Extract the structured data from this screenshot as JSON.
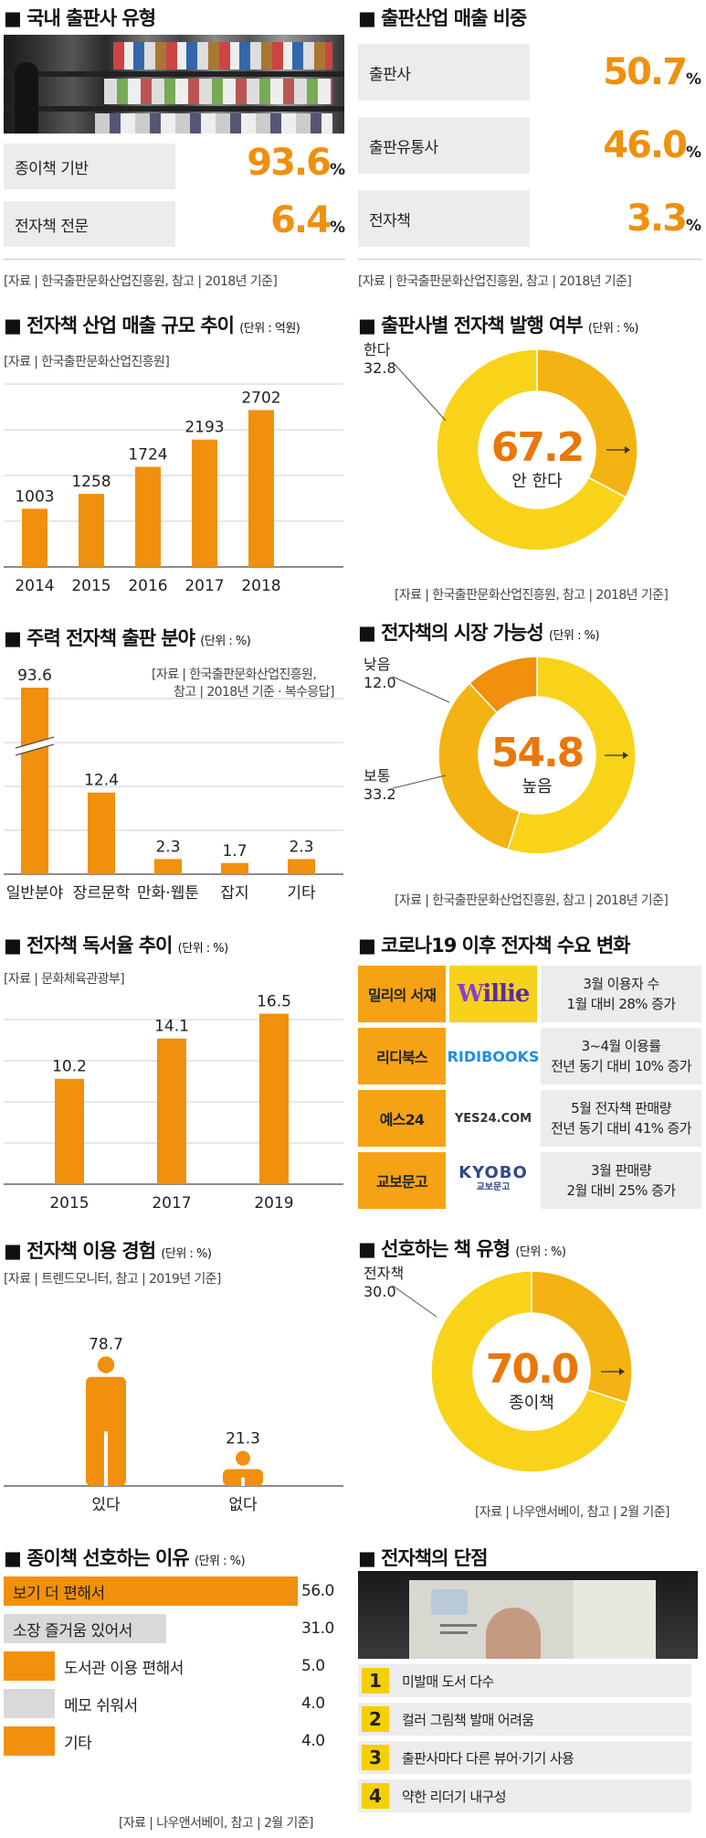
{
  "colors": {
    "orange": "#f0900c",
    "yellow": "#f8d31a",
    "gray": "#d9d9d9"
  },
  "pub_types": {
    "title": "국내 출판사 유형",
    "rows": [
      {
        "label": "종이책 기반",
        "value": "93.6",
        "unit": "%"
      },
      {
        "label": "전자책 전문",
        "value": "6.4",
        "unit": "%"
      }
    ],
    "source": "[자료 | 한국출판문화산업진흥원, 참고 | 2018년 기준]"
  },
  "revenue_share": {
    "title": "출판산업 매출 비중",
    "rows": [
      {
        "label": "출판사",
        "value": "50.7",
        "unit": "%"
      },
      {
        "label": "출판유통사",
        "value": "46.0",
        "unit": "%"
      },
      {
        "label": "전자책",
        "value": "3.3",
        "unit": "%"
      }
    ],
    "source": "[자료 | 한국출판문화산업진흥원, 참고 | 2018년 기준]"
  },
  "ebook_sales": {
    "title": "전자책 산업 매출 규모 추이",
    "unit": "(단위 : 억원)",
    "source": "[자료 | 한국출판문화산업진흥원]"
  },
  "pub_ebook": {
    "title": "출판사별 전자책 발행 여부",
    "unit": "(단위 : %)",
    "center_value": "67.2",
    "center_label": "안 한다",
    "slice_label": "한다",
    "slice_value": "32.8",
    "source": "[자료 | 한국출판문화산업진흥원, 참고 | 2018년 기준]"
  },
  "genre": {
    "title": "주력 전자책 출판 분야",
    "unit": "(단위 : %)",
    "source_l1": "[자료 | 한국출판문화산업진흥원,",
    "source_l2": "참고 | 2018년 기준 · 복수응답]"
  },
  "market": {
    "title": "전자책의 시장 가능성",
    "unit": "(단위 : %)",
    "center_value": "54.8",
    "center_label": "높음",
    "low_label": "낮음",
    "low_value": "12.0",
    "mid_label": "보통",
    "mid_value": "33.2",
    "source": "[자료 | 한국출판문화산업진흥원, 참고 | 2018년 기준]"
  },
  "reading": {
    "title": "전자책 독서율 추이",
    "unit": "(단위 : %)",
    "source": "[자료 | 문화체육관광부]"
  },
  "corona": {
    "title": "코로나19 이후 전자책 수요 변화",
    "rows": [
      {
        "name": "밀리의 서재",
        "logo": "willie",
        "l1": "3월 이용자 수",
        "l2": "1월 대비 28% 증가"
      },
      {
        "name": "리디북스",
        "logo": "RIDIBOOKS",
        "l1": "3~4월 이용률",
        "l2": "전년 동기 대비 10% 증가"
      },
      {
        "name": "예스24",
        "logo": "YES24.COM",
        "l1": "5월 전자책 판매량",
        "l2": "전년 동기 대비 41% 증가"
      },
      {
        "name": "교보문고",
        "logo": "KYOBO",
        "logo_sub": "교보문고",
        "l1": "3월 판매량",
        "l2": "2월 대비 25% 증가"
      }
    ]
  },
  "experience": {
    "title": "전자책 이용 경험",
    "unit": "(단위 : %)",
    "source": "[자료 | 트렌드모니터, 참고 | 2019년 기준]"
  },
  "prefer": {
    "title": "선호하는 책 유형",
    "unit": "(단위 : %)",
    "center_value": "70.0",
    "center_label": "종이책",
    "slice_label": "전자책",
    "slice_value": "30.0",
    "source": "[자료 | 나우앤서베이, 참고 | 2월 기준]"
  },
  "reasons": {
    "title": "종이책 선호하는 이유",
    "unit": "(단위 : %)",
    "source": "[자료 | 나우앤서베이, 참고 | 2월 기준]"
  },
  "disadv": {
    "title": "전자책의 단점",
    "items": [
      {
        "num": "1",
        "text": "미발매 도서 다수"
      },
      {
        "num": "2",
        "text": "컬러 그림책 발매 어려움"
      },
      {
        "num": "3",
        "text": "출판사마다 다른 뷰어·기기 사용"
      },
      {
        "num": "4",
        "text": "약한 리더기 내구성"
      }
    ]
  },
  "chart_data": [
    {
      "type": "bar",
      "title": "전자책 산업 매출 규모 추이",
      "ylabel": "억원",
      "categories": [
        "2014",
        "2015",
        "2016",
        "2017",
        "2018"
      ],
      "values": [
        1003,
        1258,
        1724,
        2193,
        2702
      ],
      "axis_break": true
    },
    {
      "type": "pie",
      "title": "출판사별 전자책 발행 여부",
      "labels": [
        "안 한다",
        "한다"
      ],
      "values": [
        67.2,
        32.8
      ]
    },
    {
      "type": "bar",
      "title": "주력 전자책 출판 분야",
      "categories": [
        "일반분야",
        "장르문학",
        "만화·웹툰",
        "잡지",
        "기타"
      ],
      "values": [
        93.6,
        12.4,
        2.3,
        1.7,
        2.3
      ],
      "axis_break": true
    },
    {
      "type": "pie",
      "title": "전자책의 시장 가능성",
      "labels": [
        "높음",
        "보통",
        "낮음"
      ],
      "values": [
        54.8,
        33.2,
        12.0
      ]
    },
    {
      "type": "bar",
      "title": "전자책 독서율 추이",
      "categories": [
        "2015",
        "2017",
        "2019"
      ],
      "values": [
        10.2,
        14.1,
        16.5
      ]
    },
    {
      "type": "bar",
      "title": "전자책 이용 경험",
      "categories": [
        "있다",
        "없다"
      ],
      "values": [
        78.7,
        21.3
      ]
    },
    {
      "type": "pie",
      "title": "선호하는 책 유형",
      "labels": [
        "종이책",
        "전자책"
      ],
      "values": [
        70.0,
        30.0
      ]
    },
    {
      "type": "bar",
      "orientation": "horizontal",
      "title": "종이책 선호하는 이유",
      "categories": [
        "보기 더 편해서",
        "소장 즐거움 있어서",
        "도서관 이용 편해서",
        "메모 쉬워서",
        "기타"
      ],
      "values": [
        56.0,
        31.0,
        5.0,
        4.0,
        4.0
      ]
    }
  ]
}
